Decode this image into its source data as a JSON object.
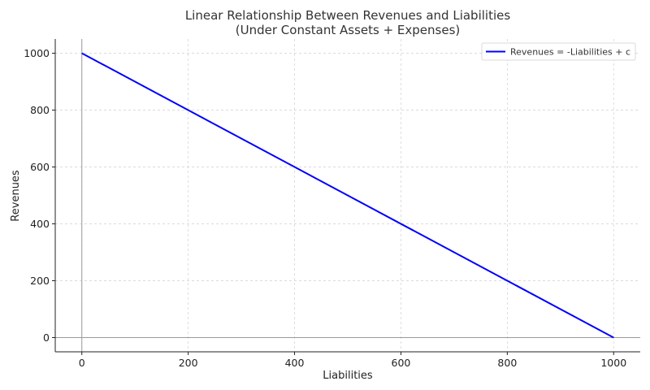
{
  "chart_data": {
    "type": "line",
    "title": "Linear Relationship Between Revenues and Liabilities",
    "subtitle": "(Under Constant Assets + Expenses)",
    "xlabel": "Liabilities",
    "ylabel": "Revenues",
    "xlim": [
      -50,
      1050
    ],
    "ylim": [
      -50,
      1050
    ],
    "xticks": [
      0,
      200,
      400,
      600,
      800,
      1000
    ],
    "yticks": [
      0,
      200,
      400,
      600,
      800,
      1000
    ],
    "grid": true,
    "legend_position": "top-right",
    "series": [
      {
        "name": "Revenues = -Liabilities + c",
        "color": "#0000ff",
        "x": [
          0,
          1000
        ],
        "y": [
          1000,
          0
        ]
      }
    ]
  }
}
